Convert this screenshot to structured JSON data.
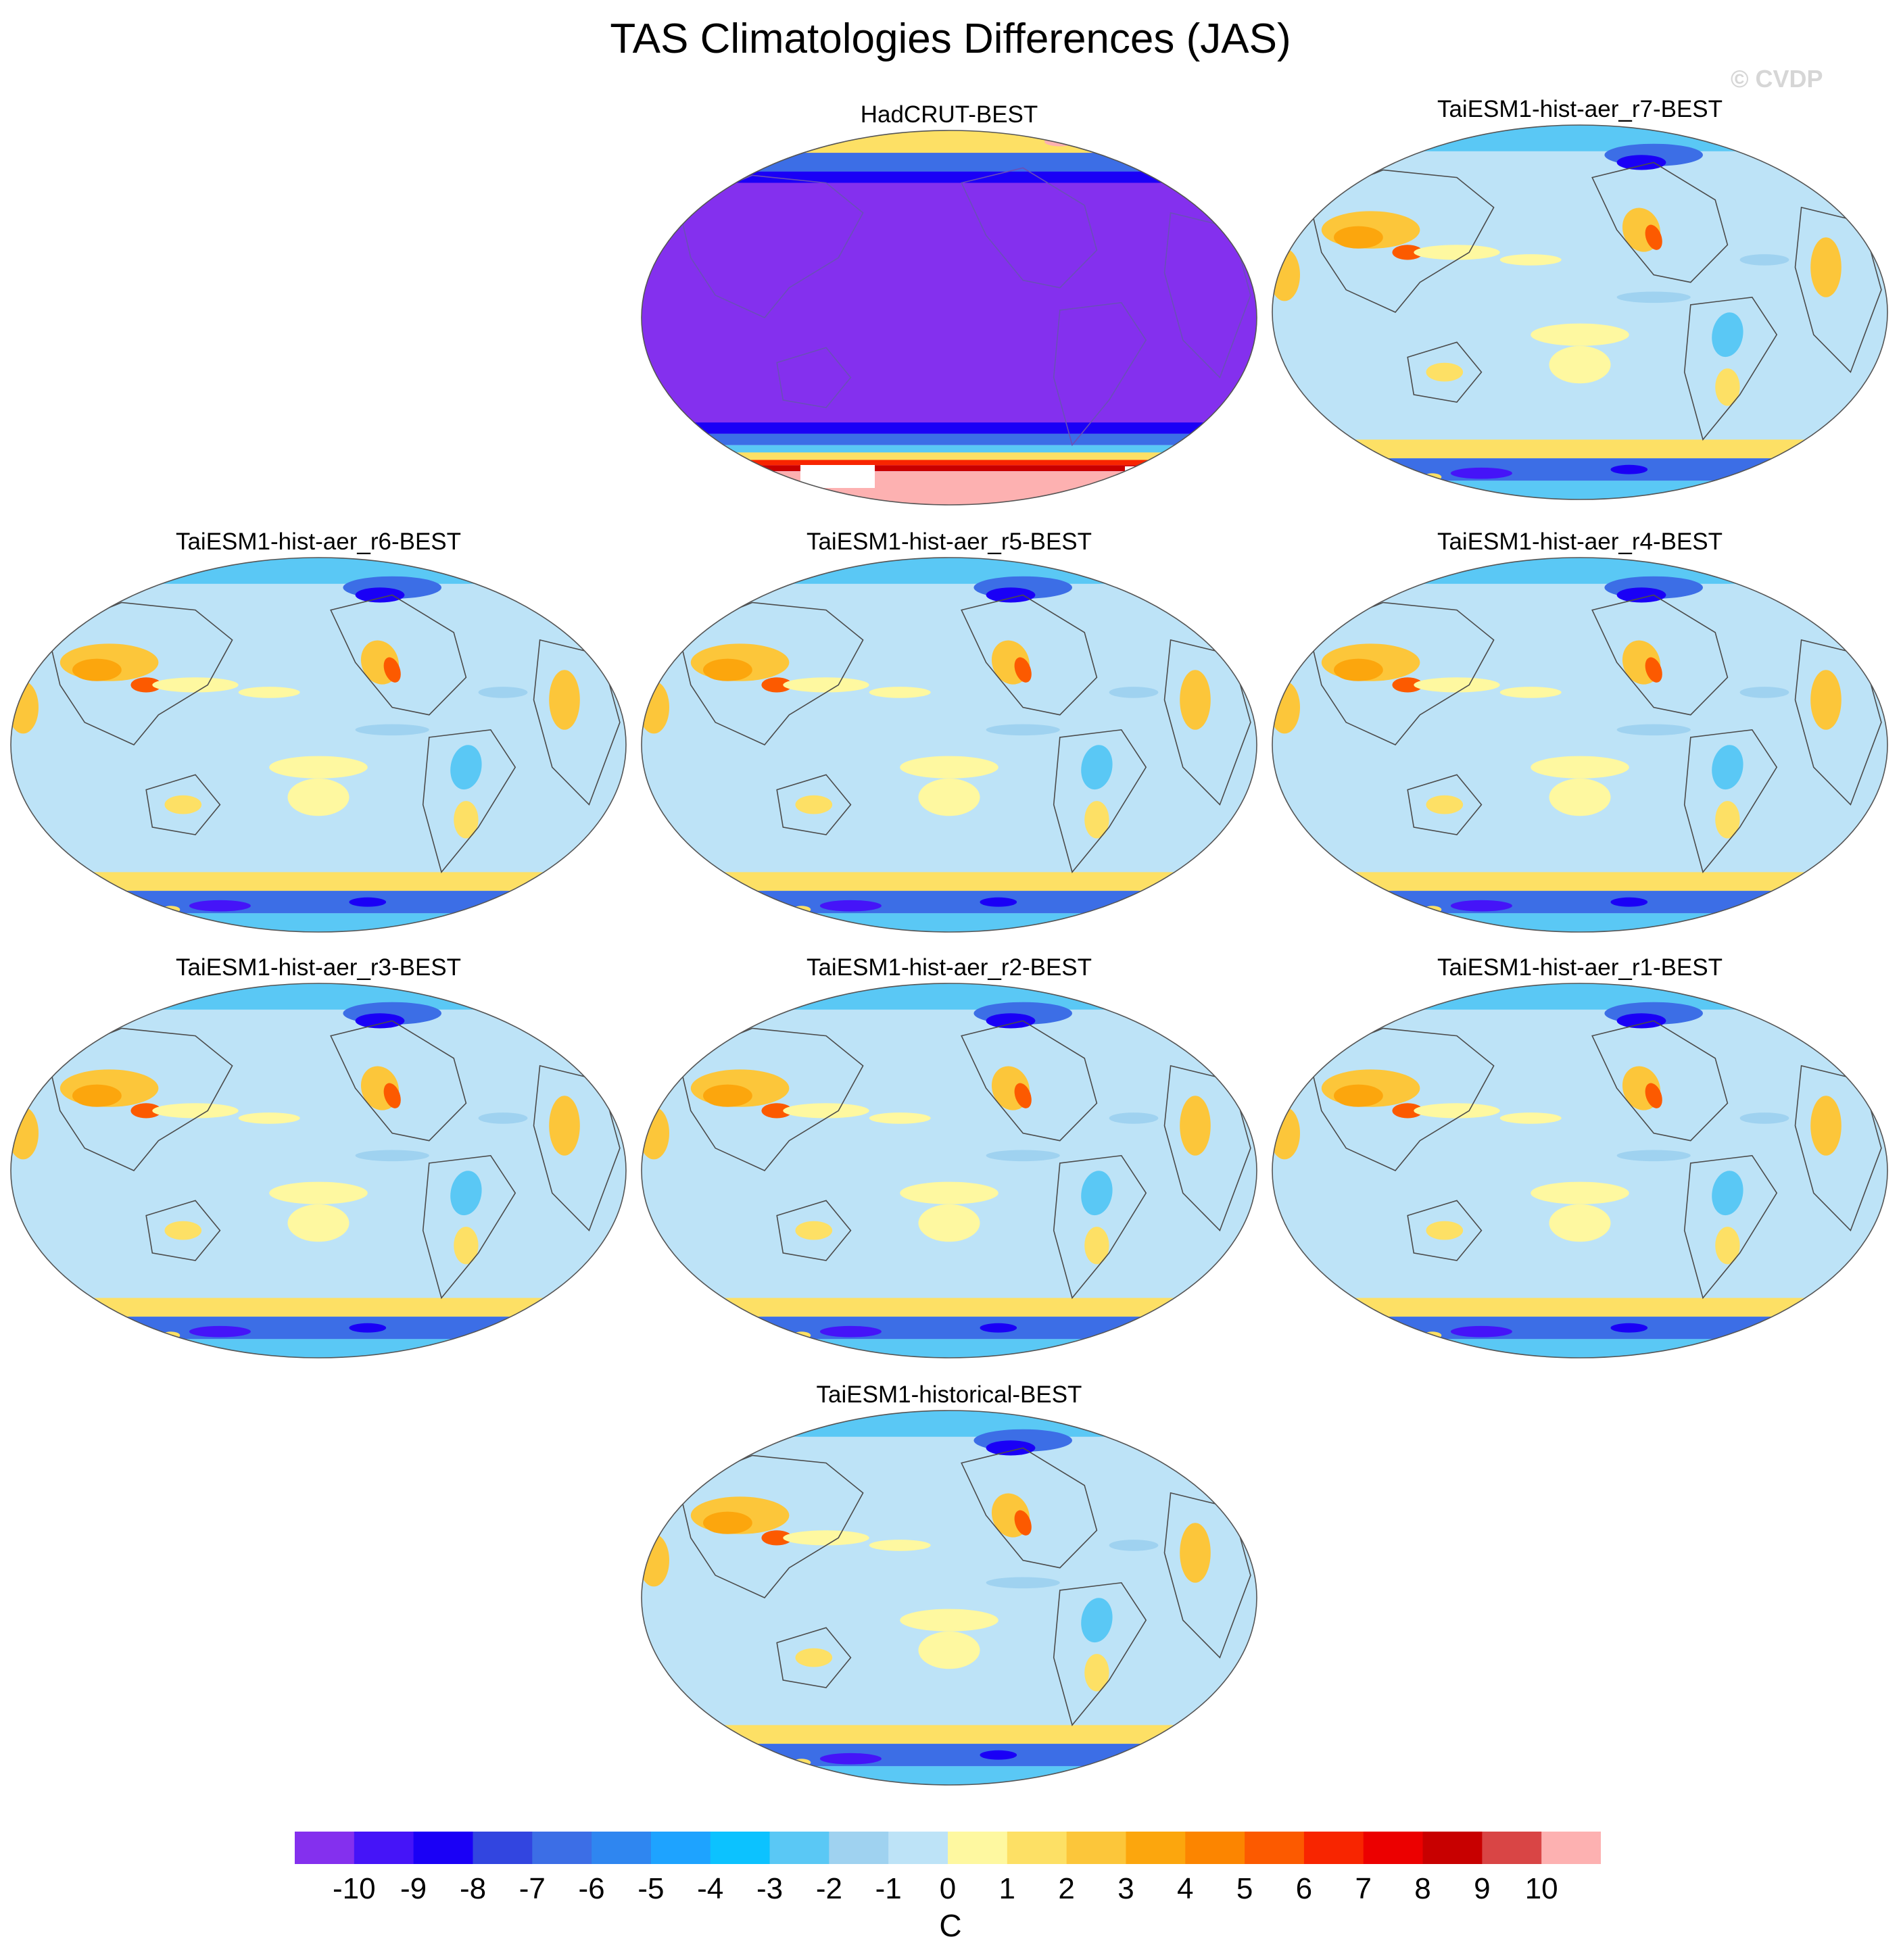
{
  "title": "TAS Climatologies Differences (JAS)",
  "watermark": "© CVDP",
  "panels": [
    {
      "label": "HadCRUT-BEST",
      "pattern": "obs"
    },
    {
      "label": "TaiESM1-hist-aer_r7-BEST",
      "pattern": "model"
    },
    {
      "label": "TaiESM1-hist-aer_r6-BEST",
      "pattern": "model"
    },
    {
      "label": "TaiESM1-hist-aer_r5-BEST",
      "pattern": "model"
    },
    {
      "label": "TaiESM1-hist-aer_r4-BEST",
      "pattern": "model"
    },
    {
      "label": "TaiESM1-hist-aer_r3-BEST",
      "pattern": "model"
    },
    {
      "label": "TaiESM1-hist-aer_r2-BEST",
      "pattern": "model"
    },
    {
      "label": "TaiESM1-hist-aer_r1-BEST",
      "pattern": "model"
    },
    {
      "label": "TaiESM1-historical-BEST",
      "pattern": "model"
    }
  ],
  "chart_data": {
    "type": "heatmap",
    "title": "TAS Climatologies Differences (JAS)",
    "projection": "Robinson (Pacific-centered)",
    "colorbar": {
      "unit": "C",
      "tick_labels": [
        "-10",
        "-9",
        "-8",
        "-7",
        "-6",
        "-5",
        "-4",
        "-3",
        "-2",
        "-1",
        "0",
        "1",
        "2",
        "3",
        "4",
        "5",
        "6",
        "7",
        "8",
        "9",
        "10"
      ],
      "levels": [
        -10,
        -9,
        -8,
        -7,
        -6,
        -5,
        -4,
        -3,
        -2,
        -1,
        0,
        1,
        2,
        3,
        4,
        5,
        6,
        7,
        8,
        9,
        10
      ],
      "colors": [
        "#8430ee",
        "#4514f8",
        "#1a00f6",
        "#3245e0",
        "#3c6ee6",
        "#2f86f0",
        "#1ea3ff",
        "#0cc2ff",
        "#5ac8f5",
        "#9fd2f0",
        "#bde3f7",
        "#fef8a0",
        "#fde065",
        "#fcc63a",
        "#fca60d",
        "#fc8500",
        "#fc5a00",
        "#f82500",
        "#ec0000",
        "#c80000",
        "#d94545",
        "#fdb1b1"
      ]
    }
  }
}
